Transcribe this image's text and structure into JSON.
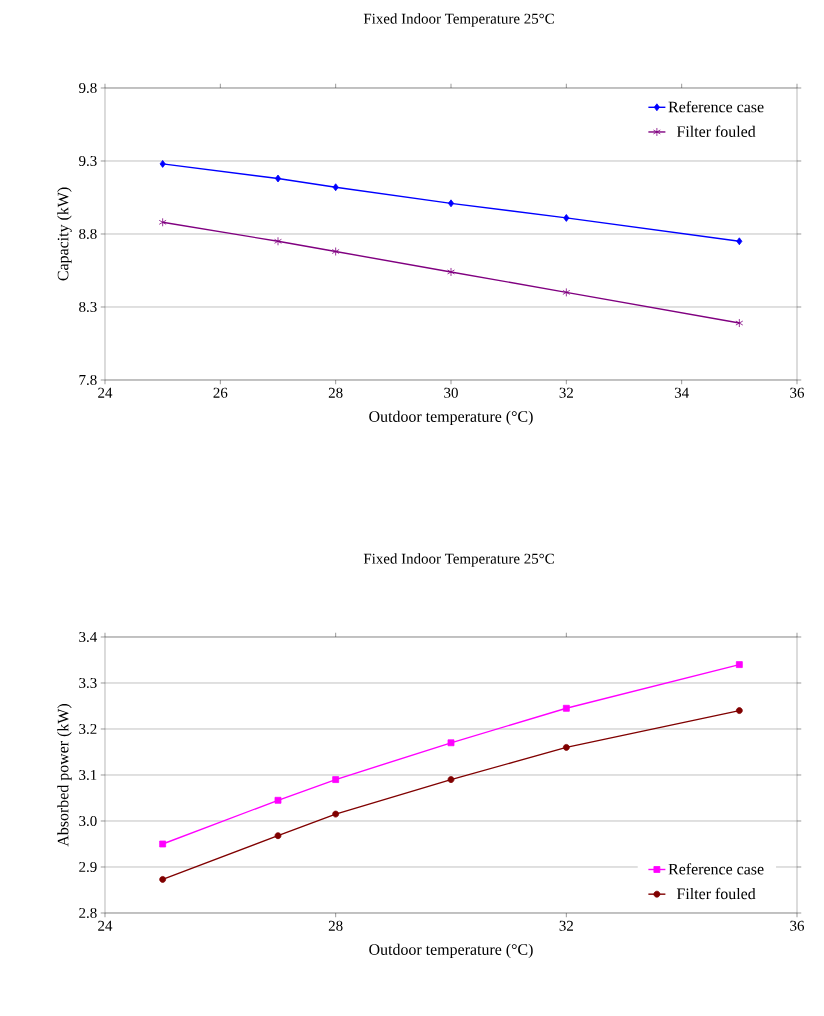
{
  "chart_data": [
    {
      "type": "line",
      "title": "Fixed Indoor Temperature 25°C",
      "xlabel": "Outdoor temperature (°C)",
      "ylabel": "Capacity (kW)",
      "x": [
        25,
        27,
        28,
        30,
        32,
        35
      ],
      "series": [
        {
          "name": "Reference case",
          "color": "#0000ff",
          "marker": "diamond",
          "values": [
            9.28,
            9.18,
            9.12,
            9.01,
            8.91,
            8.75
          ]
        },
        {
          "name": "Filter fouled",
          "color": "#800080",
          "marker": "cross",
          "values": [
            8.88,
            8.75,
            8.68,
            8.54,
            8.4,
            8.19
          ]
        }
      ],
      "xlim": [
        24,
        36
      ],
      "xticks": [
        24,
        26,
        28,
        30,
        32,
        34,
        36
      ],
      "ylim": [
        7.8,
        9.8
      ],
      "yticks": [
        7.8,
        8.3,
        8.8,
        9.3,
        9.8
      ],
      "grid": "y",
      "legend": "top right",
      "line_style": "solid"
    },
    {
      "type": "line",
      "title": "Fixed Indoor Temperature 25°C",
      "xlabel": "Outdoor temperature (°C)",
      "ylabel": "Absorbed power (kW)",
      "x": [
        25,
        27,
        28,
        30,
        32,
        35
      ],
      "series": [
        {
          "name": "Reference case",
          "color": "#ff00ff",
          "marker": "square",
          "values": [
            2.95,
            3.045,
            3.09,
            3.17,
            3.245,
            3.34
          ]
        },
        {
          "name": "Filter fouled",
          "color": "#800000",
          "marker": "circle",
          "values": [
            2.873,
            2.968,
            3.015,
            3.09,
            3.16,
            3.24
          ]
        }
      ],
      "xlim": [
        24,
        36
      ],
      "xticks": [
        24,
        28,
        32,
        36
      ],
      "ylim": [
        2.8,
        3.4
      ],
      "yticks": [
        2.8,
        2.9,
        {
          "value": 3.0,
          "label": "3.0"
        },
        3.1,
        3.2,
        3.3,
        3.4
      ],
      "grid": "y",
      "legend": "bottom right",
      "line_style": "solid"
    }
  ]
}
